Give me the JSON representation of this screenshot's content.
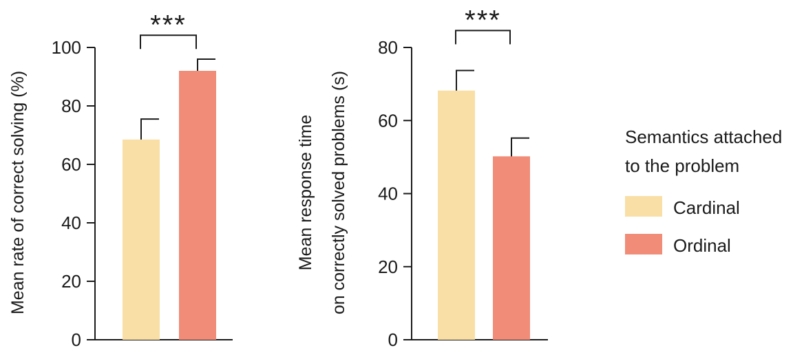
{
  "colors": {
    "cardinal": "#f9dfa6",
    "ordinal": "#f08c78"
  },
  "legend": {
    "title_line1": "Semantics attached",
    "title_line2": "to the problem",
    "items": [
      {
        "label": "Cardinal",
        "color": "#f9dfa6"
      },
      {
        "label": "Ordinal",
        "color": "#f08c78"
      }
    ]
  },
  "chart_data": [
    {
      "type": "bar",
      "categories": [
        "Cardinal",
        "Ordinal"
      ],
      "values": [
        68.5,
        92
      ],
      "errors": [
        7,
        4
      ],
      "ylabel": "Mean rate of correct solving (%)",
      "ylabel_line1": "",
      "ylabel_line2": "Mean rate of correct solving (%)",
      "ylim": [
        0,
        100
      ],
      "yticks": [
        0,
        20,
        40,
        60,
        80,
        100
      ],
      "significance": "***",
      "bracket_level": 99
    },
    {
      "type": "bar",
      "categories": [
        "Cardinal",
        "Ordinal"
      ],
      "values": [
        68.2,
        50.2
      ],
      "errors": [
        5.5,
        5
      ],
      "ylabel": "Mean response time on correctly solved problems (s)",
      "ylabel_line1": "Mean response time",
      "ylabel_line2": "on correctly solved problems (s)",
      "ylim": [
        0,
        80
      ],
      "yticks": [
        0,
        20,
        40,
        60,
        80
      ],
      "significance": "***",
      "bracket_level": 80.5
    }
  ]
}
